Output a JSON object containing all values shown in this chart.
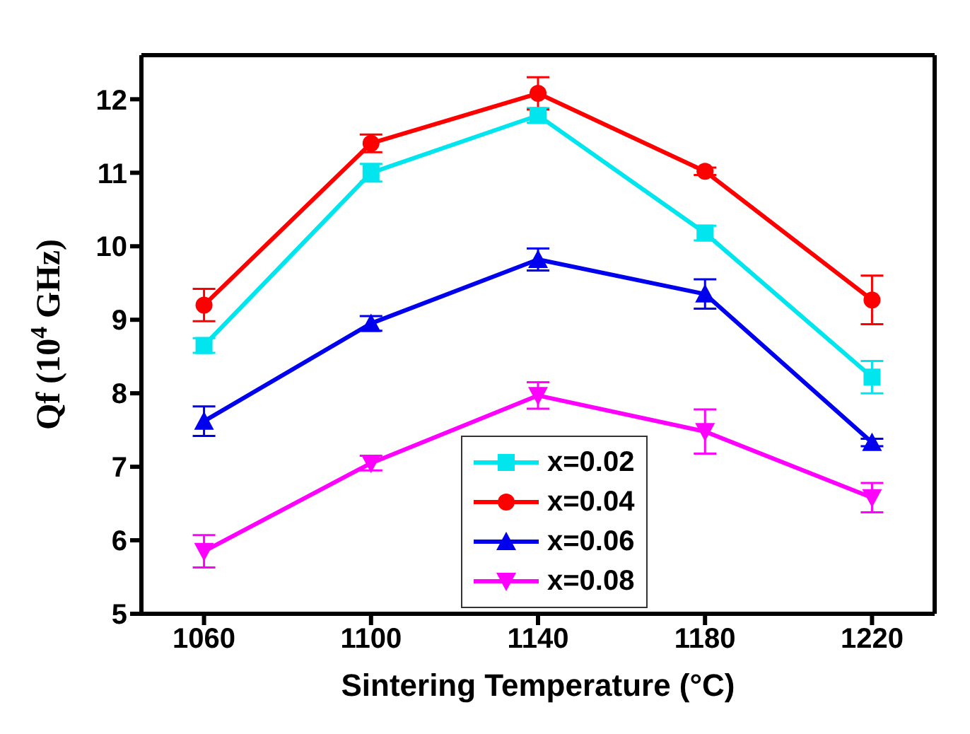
{
  "chart_data": {
    "type": "line",
    "xlabel": "Sintering Temperature (°C)",
    "ylabel": "Qf (10$^{4}$ GHz)",
    "x": [
      1060,
      1100,
      1140,
      1180,
      1220
    ],
    "series": [
      {
        "name": "x=0.02",
        "color": "#00e5ee",
        "marker": "square",
        "values": [
          8.65,
          11.0,
          11.78,
          10.18,
          8.22
        ],
        "errors": [
          0.1,
          0.12,
          0.1,
          0.1,
          0.22
        ]
      },
      {
        "name": "x=0.04",
        "color": "#ff0000",
        "marker": "circle",
        "values": [
          9.2,
          11.4,
          12.08,
          11.02,
          9.27
        ],
        "errors": [
          0.22,
          0.12,
          0.22,
          0.05,
          0.33
        ]
      },
      {
        "name": "x=0.06",
        "color": "#0000ee",
        "marker": "triangle",
        "values": [
          7.62,
          8.95,
          9.82,
          9.35,
          7.33
        ],
        "errors": [
          0.2,
          0.1,
          0.15,
          0.2,
          0.05
        ]
      },
      {
        "name": "x=0.08",
        "color": "#ff00ff",
        "marker": "triangle-down",
        "values": [
          5.85,
          7.05,
          7.97,
          7.48,
          6.58
        ],
        "errors": [
          0.22,
          0.1,
          0.18,
          0.3,
          0.2
        ]
      }
    ],
    "xlim": [
      1045,
      1235
    ],
    "xticks": [
      1060,
      1100,
      1140,
      1180,
      1220
    ],
    "ylim": [
      5,
      12.6
    ],
    "yticks": [
      5,
      6,
      7,
      8,
      9,
      10,
      11,
      12
    ],
    "grid": false,
    "legend": "bottom"
  }
}
